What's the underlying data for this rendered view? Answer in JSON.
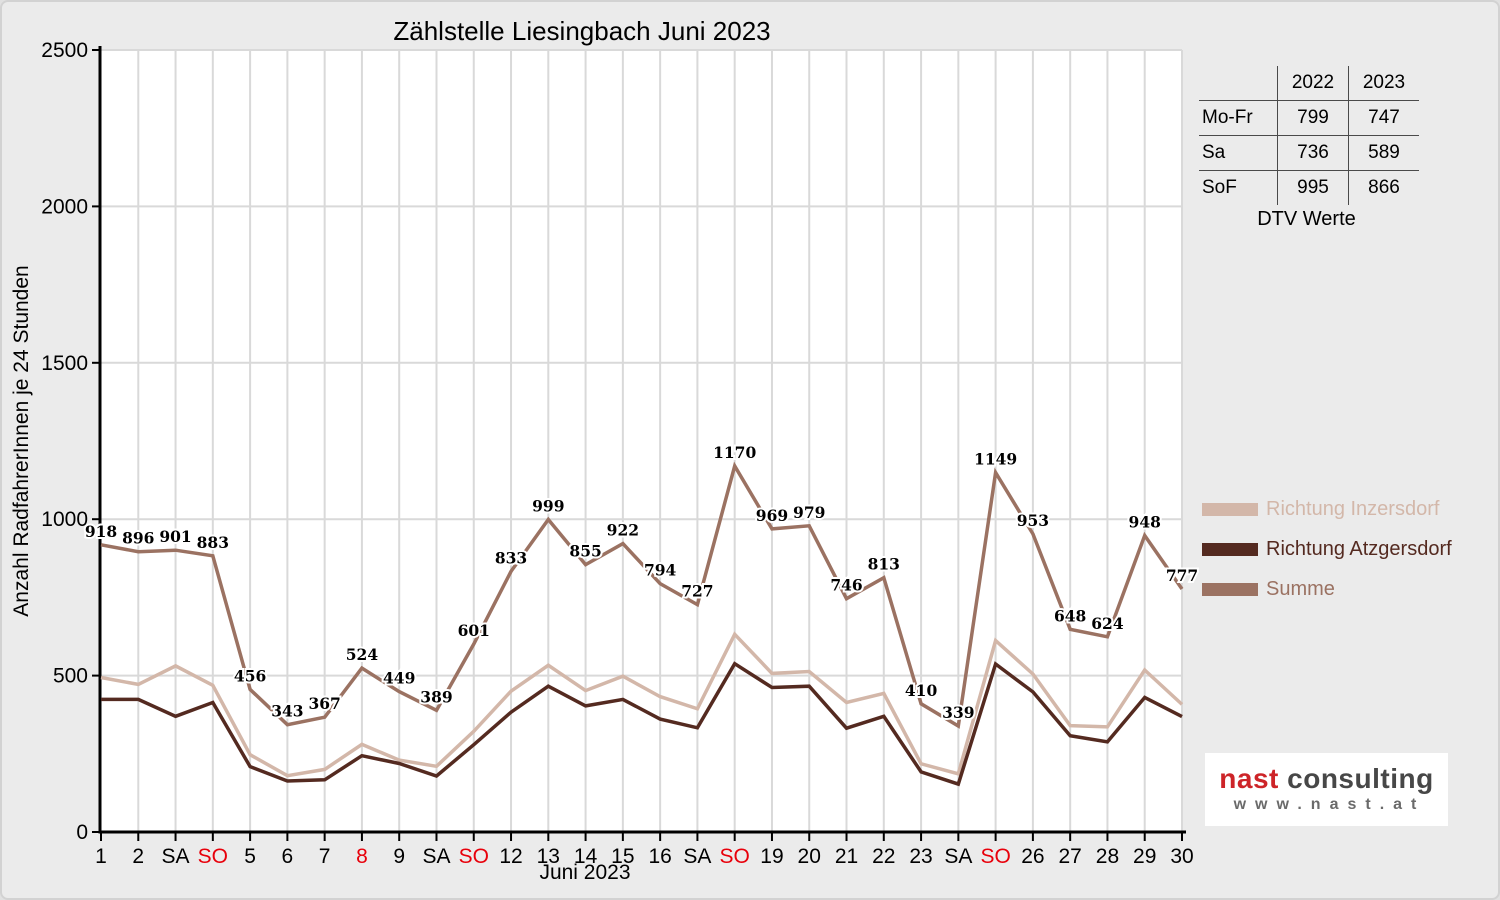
{
  "title": "Zählstelle Liesingbach Juni 2023",
  "colors": {
    "background": "#ebebeb",
    "plot_background": "#ffffff",
    "grid": "#d9d9d9",
    "axis": "#000000",
    "tick_label": "#000000",
    "holiday_red": "#e8000b",
    "point_label": "#000000",
    "point_label_halo": "#ffffff"
  },
  "chart_data": {
    "type": "line",
    "title": "Zählstelle Liesingbach Juni 2023",
    "xlabel": "Juni 2023",
    "ylabel": "Anzahl RadfahrerInnen je 24 Stunden",
    "ylim": [
      0,
      2500
    ],
    "ytick_step": 500,
    "ytick_labels": [
      "0",
      "500",
      "1000",
      "1500",
      "2000",
      "2500"
    ],
    "grid": true,
    "legend_position": "right-outside",
    "categories": [
      "1",
      "2",
      "SA",
      "SO",
      "5",
      "6",
      "7",
      "8",
      "9",
      "SA",
      "SO",
      "12",
      "13",
      "14",
      "15",
      "16",
      "SA",
      "SO",
      "19",
      "20",
      "21",
      "22",
      "23",
      "SA",
      "SO",
      "26",
      "27",
      "28",
      "29",
      "30"
    ],
    "red_category_indices": [
      3,
      7,
      10,
      17,
      24
    ],
    "series": [
      {
        "name": "Richtung Inzersdorf",
        "color": "#d3b7a9",
        "values": [
          494,
          472,
          531,
          469,
          247,
          180,
          200,
          280,
          230,
          210,
          322,
          450,
          533,
          452,
          498,
          433,
          394,
          632,
          507,
          513,
          414,
          443,
          218,
          186,
          612,
          505,
          340,
          336,
          518,
          408
        ],
        "labeled": false
      },
      {
        "name": "Richtung Atzgersdorf",
        "color": "#542a20",
        "values": [
          424,
          424,
          370,
          414,
          209,
          163,
          167,
          244,
          219,
          179,
          279,
          383,
          466,
          403,
          424,
          361,
          333,
          538,
          462,
          466,
          332,
          370,
          192,
          153,
          537,
          448,
          308,
          288,
          430,
          369
        ],
        "labeled": false
      },
      {
        "name": "Summe",
        "color": "#9b7262",
        "values": [
          918,
          896,
          901,
          883,
          456,
          343,
          367,
          524,
          449,
          389,
          601,
          833,
          999,
          855,
          922,
          794,
          727,
          1170,
          969,
          979,
          746,
          813,
          410,
          339,
          1149,
          953,
          648,
          624,
          948,
          777
        ],
        "labeled": true
      }
    ]
  },
  "dtv_table": {
    "col_headers": [
      "2022",
      "2023"
    ],
    "rows": [
      {
        "label": "Mo-Fr",
        "values": [
          "799",
          "747"
        ]
      },
      {
        "label": "Sa",
        "values": [
          "736",
          "589"
        ]
      },
      {
        "label": "SoF",
        "values": [
          "995",
          "866"
        ]
      }
    ],
    "caption": "DTV Werte"
  },
  "logo": {
    "brand_red": "nast",
    "brand_gray": "consulting",
    "url_text": "www.nast.at"
  }
}
